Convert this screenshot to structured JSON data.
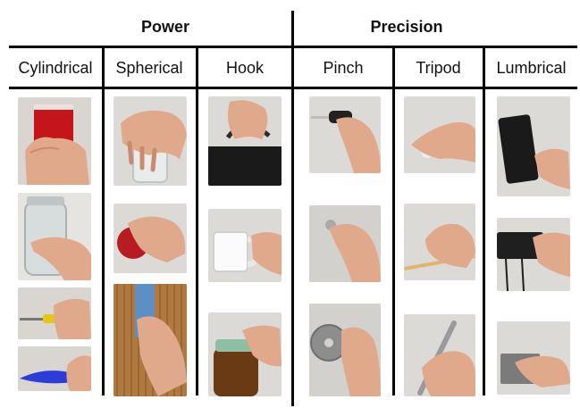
{
  "header": {
    "power_label": "Power",
    "precision_label": "Precision"
  },
  "columns": {
    "cylindrical": "Cylindrical",
    "spherical": "Spherical",
    "hook": "Hook",
    "pinch": "Pinch",
    "tripod": "Tripod",
    "lumbrical": "Lumbrical"
  },
  "colors": {
    "skin": "#e0a98c",
    "skin_shadow": "#c98b6e",
    "background_wall": "#d9d6d2",
    "cup_red": "#c4141c",
    "bag_black": "#1a1a1a",
    "wood": "#b07a3f",
    "blue_knife": "#2a3dd6"
  }
}
